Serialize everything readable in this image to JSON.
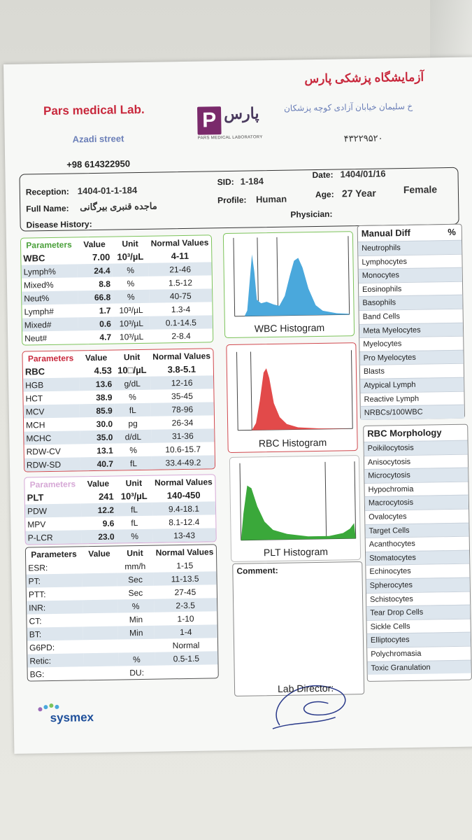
{
  "header": {
    "lab_en": "Pars medical Lab.",
    "street": "Azadi street",
    "phone": "+98 614322950",
    "lab_fa": "آزمایشگاه پزشکی پارس",
    "address_fa": "خ سلیمان خیابان آزادی کوچه پزشکان",
    "number_fa": "۴۳۲۲۹۵۲۰",
    "logo_letter": "P",
    "logo_fa": "پارس",
    "logo_caption": "PARS MEDICAL LABORATORY"
  },
  "patient": {
    "reception_label": "Reception:",
    "reception": "1404-01-1-184",
    "sid_label": "SID:",
    "sid": "1-184",
    "date_label": "Date:",
    "date": "1404/01/16",
    "fullname_label": "Full Name:",
    "fullname": "ماجده قنبری بیرگانی",
    "profile_label": "Profile:",
    "profile": "Human",
    "age_label": "Age:",
    "age": "27 Year",
    "sex": "Female",
    "disease_label": "Disease History:",
    "physician_label": "Physician:"
  },
  "headers": {
    "param": "Parameters",
    "value": "Value",
    "unit": "Unit",
    "normal": "Normal Values"
  },
  "wbc_table": [
    {
      "name": "WBC",
      "value": "7.00",
      "unit": "10³/µL",
      "normal": "4-11"
    },
    {
      "name": "Lymph%",
      "value": "24.4",
      "unit": "%",
      "normal": "21-46"
    },
    {
      "name": "Mixed%",
      "value": "8.8",
      "unit": "%",
      "normal": "1.5-12"
    },
    {
      "name": "Neut%",
      "value": "66.8",
      "unit": "%",
      "normal": "40-75"
    },
    {
      "name": "Lymph#",
      "value": "1.7",
      "unit": "10³/µL",
      "normal": "1.3-4"
    },
    {
      "name": "Mixed#",
      "value": "0.6",
      "unit": "10³/µL",
      "normal": "0.1-14.5"
    },
    {
      "name": "Neut#",
      "value": "4.7",
      "unit": "10³/µL",
      "normal": "2-8.4"
    }
  ],
  "rbc_table": [
    {
      "name": "RBC",
      "value": "4.53",
      "unit": "10□/µL",
      "normal": "3.8-5.1"
    },
    {
      "name": "HGB",
      "value": "13.6",
      "unit": "g/dL",
      "normal": "12-16"
    },
    {
      "name": "HCT",
      "value": "38.9",
      "unit": "%",
      "normal": "35-45"
    },
    {
      "name": "MCV",
      "value": "85.9",
      "unit": "fL",
      "normal": "78-96"
    },
    {
      "name": "MCH",
      "value": "30.0",
      "unit": "pg",
      "normal": "26-34"
    },
    {
      "name": "MCHC",
      "value": "35.0",
      "unit": "d/dL",
      "normal": "31-36"
    },
    {
      "name": "RDW-CV",
      "value": "13.1",
      "unit": "%",
      "normal": "10.6-15.7"
    },
    {
      "name": "RDW-SD",
      "value": "40.7",
      "unit": "fL",
      "normal": "33.4-49.2"
    }
  ],
  "plt_table": [
    {
      "name": "PLT",
      "value": "241",
      "unit": "10³/µL",
      "normal": "140-450"
    },
    {
      "name": "PDW",
      "value": "12.2",
      "unit": "fL",
      "normal": "9.4-18.1"
    },
    {
      "name": "MPV",
      "value": "9.6",
      "unit": "fL",
      "normal": "8.1-12.4"
    },
    {
      "name": "P-LCR",
      "value": "23.0",
      "unit": "%",
      "normal": "13-43"
    }
  ],
  "other_table": [
    {
      "name": "ESR:",
      "value": "",
      "unit": "mm/h",
      "normal": "1-15"
    },
    {
      "name": "PT:",
      "value": "",
      "unit": "Sec",
      "normal": "11-13.5"
    },
    {
      "name": "PTT:",
      "value": "",
      "unit": "Sec",
      "normal": "27-45"
    },
    {
      "name": "INR:",
      "value": "",
      "unit": "%",
      "normal": "2-3.5"
    },
    {
      "name": "CT:",
      "value": "",
      "unit": "Min",
      "normal": "1-10"
    },
    {
      "name": "BT:",
      "value": "",
      "unit": "Min",
      "normal": "1-4"
    },
    {
      "name": "G6PD:",
      "value": "",
      "unit": "",
      "normal": "Normal"
    },
    {
      "name": "Retic:",
      "value": "",
      "unit": "%",
      "normal": "0.5-1.5"
    },
    {
      "name": "BG:",
      "value": "",
      "unit": "DU:",
      "normal": ""
    }
  ],
  "histograms": {
    "wbc": "WBC Histogram",
    "rbc": "RBC Histogram",
    "plt": "PLT Histogram"
  },
  "manual_diff": {
    "title": "Manual Diff",
    "percent": "%",
    "items": [
      "Neutrophils",
      "Lymphocytes",
      "Monocytes",
      "Eosinophils",
      "Basophils",
      "Band Cells",
      "Meta Myelocytes",
      "Myelocytes",
      "Pro Myelocytes",
      "Blasts",
      "Atypical Lymph",
      "Reactive Lymph",
      "NRBCs/100WBC"
    ]
  },
  "rbc_morph": {
    "title": "RBC Morphology",
    "items": [
      "Poikilocytosis",
      "Anisocytosis",
      "Microcytosis",
      "Hypochromia",
      "Macrocytosis",
      "Ovalocytes",
      "Target Cells",
      "Acanthocytes",
      "Stomatocytes",
      "Echinocytes",
      "Spherocytes",
      "Schistocytes",
      "Tear Drop Cells",
      "Sickle Cells",
      "Elliptocytes",
      "Polychromasia",
      "Toxic Granulation"
    ]
  },
  "comment_label": "Comment:",
  "footer": {
    "brand": "sysmex",
    "director": "Lab Director:"
  },
  "colors": {
    "wbc": "#4aa8dc",
    "rbc": "#e24a4a",
    "plt": "#3aa83a",
    "wbc_border": "#7cc35a",
    "rbc_border": "#d0484e",
    "plt_border": "#d6a8d6",
    "accent": "#c8283c"
  }
}
